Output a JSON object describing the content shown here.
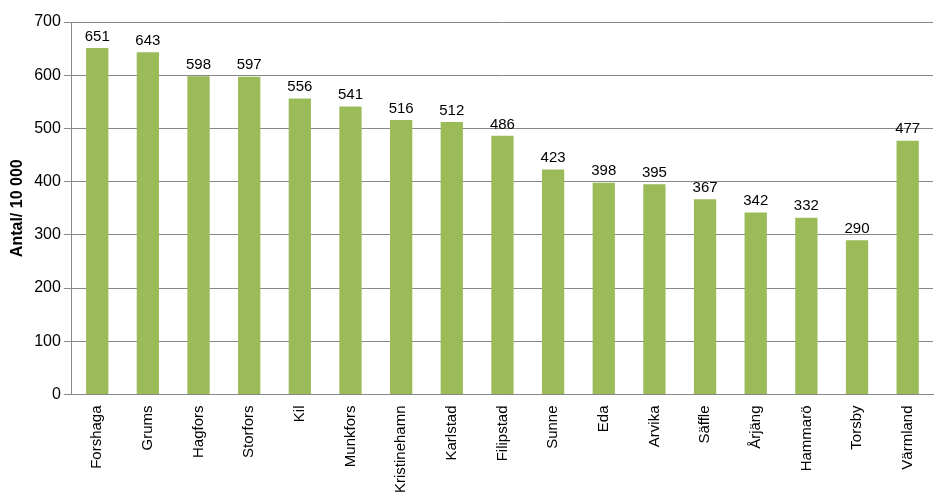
{
  "chart_data": {
    "type": "bar",
    "y_label": "Antal/ 10 000",
    "categories": [
      "Forshaga",
      "Grums",
      "Hagfors",
      "Storfors",
      "Kil",
      "Munkfors",
      "Kristinehamn",
      "Karlstad",
      "Filipstad",
      "Sunne",
      "Eda",
      "Arvika",
      "Säffle",
      "Årjäng",
      "Hammarö",
      "Torsby",
      "Värmland"
    ],
    "values": [
      651,
      643,
      598,
      597,
      556,
      541,
      516,
      512,
      486,
      423,
      398,
      395,
      367,
      342,
      332,
      290,
      477
    ],
    "color": "#9bbb59",
    "ylim": [
      0,
      700
    ],
    "yticks": [
      0,
      100,
      200,
      300,
      400,
      500,
      600,
      700
    ],
    "grid": true,
    "data_labels": true
  }
}
